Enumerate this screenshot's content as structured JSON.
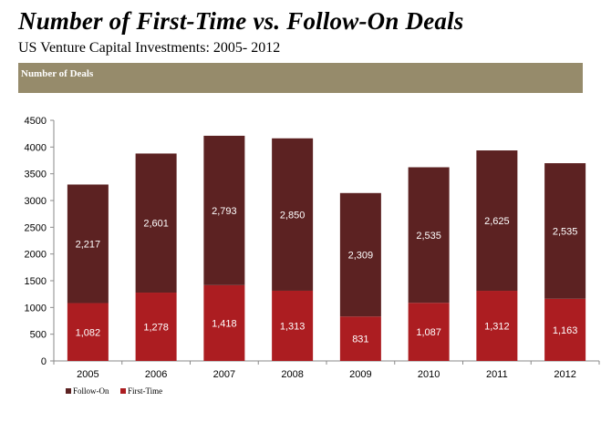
{
  "header": {
    "title": "Number of First-Time vs. Follow-On Deals",
    "subtitle": "US Venture Capital Investments: 2005- 2012",
    "panel_label": "Number of Deals"
  },
  "colors": {
    "follow_on": "#5c2222",
    "first_time": "#ac1d21",
    "header_band": "#968b6b"
  },
  "chart_data": {
    "type": "bar",
    "stacked": true,
    "title": "Number of First-Time vs. Follow-On Deals",
    "subtitle": "US Venture Capital Investments: 2005- 2012",
    "ylabel": "Number of Deals",
    "xlabel": "",
    "categories": [
      "2005",
      "2006",
      "2007",
      "2008",
      "2009",
      "2010",
      "2011",
      "2012"
    ],
    "series": [
      {
        "name": "First-Time",
        "values": [
          1082,
          1278,
          1418,
          1313,
          831,
          1087,
          1312,
          1163
        ],
        "labels": [
          "1,082",
          "1,278",
          "1,418",
          "1,313",
          "831",
          "1,087",
          "1,312",
          "1,163"
        ]
      },
      {
        "name": "Follow-On",
        "values": [
          2217,
          2601,
          2793,
          2850,
          2309,
          2535,
          2625,
          2535
        ],
        "labels": [
          "2,217",
          "2,601",
          "2,793",
          "2,850",
          "2,309",
          "2,535",
          "2,625",
          "2,535"
        ]
      }
    ],
    "ylim": [
      0,
      4500
    ],
    "yticks": [
      "0",
      "500",
      "1000",
      "1500",
      "2000",
      "2500",
      "3000",
      "3500",
      "4000",
      "4500"
    ],
    "grid": false,
    "legend": [
      "Follow-On",
      "First-Time"
    ],
    "legend_position": "bottom-left"
  }
}
